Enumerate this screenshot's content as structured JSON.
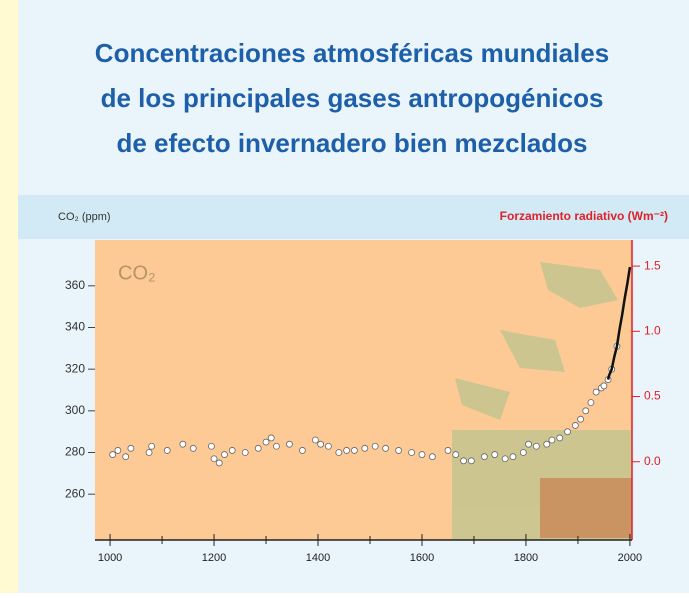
{
  "chart_data": {
    "type": "scatter",
    "title": [
      "Concentraciones atmosféricas mundiales",
      "de los principales gases antropogénicos",
      "de efecto invernadero bien mezclados"
    ],
    "y_label": "CO₂ (ppm)",
    "y2_label": "Forzamiento radiativo (Wm⁻²)",
    "panel_label": "CO₂",
    "xlim": [
      971,
      2004
    ],
    "xticks": [
      1000,
      1200,
      1400,
      1600,
      1800,
      2000
    ],
    "xminorticks": [
      1100,
      1300,
      1500,
      1700,
      1900
    ],
    "ylim": [
      238,
      382
    ],
    "yticks": [
      260,
      280,
      300,
      320,
      340,
      360
    ],
    "y2lim": [
      -0.6,
      1.7
    ],
    "y2ticks": [
      {
        "value": 0,
        "label": "0.0"
      },
      0.5,
      {
        "value": 1,
        "label": "1.0"
      },
      1.5
    ],
    "series": [
      {
        "color": "#ffffff",
        "style": "points",
        "x": [
          1005,
          1015,
          1030,
          1040,
          1075,
          1080,
          1110,
          1140,
          1160,
          1195,
          1200,
          1210,
          1220,
          1235,
          1260,
          1285,
          1300,
          1310,
          1320,
          1345,
          1370,
          1395,
          1405,
          1420,
          1440,
          1455,
          1470,
          1490,
          1510,
          1530,
          1555,
          1580,
          1600,
          1620,
          1650,
          1665,
          1680,
          1695,
          1720,
          1740,
          1760,
          1775,
          1795,
          1805,
          1820,
          1840,
          1850,
          1865,
          1880,
          1895,
          1905,
          1915,
          1925,
          1935,
          1945,
          1950,
          1958,
          1965,
          1975
        ],
        "values": [
          279,
          281,
          278,
          282,
          280,
          283,
          281,
          284,
          282,
          283,
          277,
          275,
          279,
          281,
          280,
          282,
          285,
          287,
          283,
          284,
          281,
          286,
          284,
          283,
          280,
          281,
          281,
          282,
          283,
          282,
          281,
          280,
          279,
          278,
          281,
          279,
          276,
          276,
          278,
          279,
          277,
          278,
          280,
          284,
          283,
          284,
          286,
          287,
          290,
          293,
          296,
          300,
          304,
          309,
          311,
          312,
          315,
          320,
          331
        ]
      },
      {
        "color": "#111111",
        "style": "line",
        "x": [
          1958,
          1960,
          1965,
          1970,
          1975,
          1980,
          1985,
          1990,
          1995,
          2000
        ],
        "values": [
          315,
          317,
          320,
          326,
          331,
          339,
          346,
          354,
          361,
          369
        ]
      }
    ]
  }
}
